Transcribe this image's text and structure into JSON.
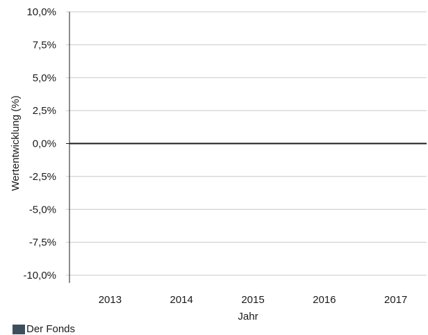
{
  "chart_data": {
    "type": "bar",
    "title": "",
    "xlabel": "Jahr",
    "ylabel": "Wertentwicklung (%)",
    "categories": [
      "2013",
      "2014",
      "2015",
      "2016",
      "2017"
    ],
    "series": [
      {
        "name": "Der Fonds",
        "values": [
          null,
          null,
          null,
          null,
          null
        ],
        "color": "#3d4f5c"
      }
    ],
    "ylim": [
      -10,
      10
    ],
    "yticks": [
      10,
      7.5,
      5,
      2.5,
      0,
      -2.5,
      -5,
      -7.5,
      -10
    ],
    "ytick_labels": [
      "10,0%",
      "7,5%",
      "5,0%",
      "2,5%",
      "0,0%",
      "-2,5%",
      "-5,0%",
      "-7,5%",
      "-10,0%"
    ],
    "grid": true,
    "legend_position": "bottom-left"
  },
  "colors": {
    "grid": "#c8c8c8",
    "zero_line": "#1a1a1a",
    "axis": "#1a1a1a"
  }
}
